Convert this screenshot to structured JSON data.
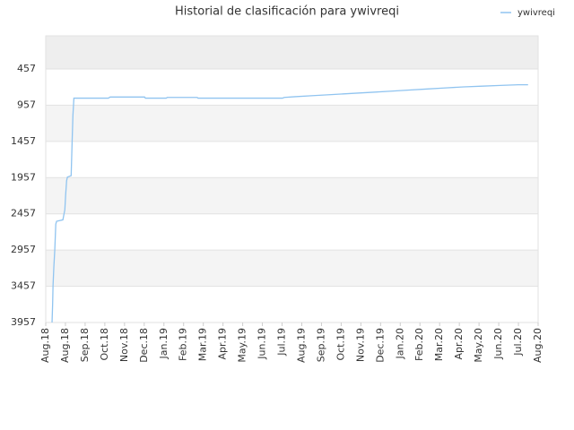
{
  "chart_data": {
    "type": "line",
    "title": "Historial de clasificación para ywivreqi",
    "legend": "top-right",
    "grid": true,
    "y_inverted": true,
    "xlim": [
      0,
      25
    ],
    "xticks": [
      {
        "value": 0,
        "label": "Aug.18"
      },
      {
        "value": 1,
        "label": "Aug.18"
      },
      {
        "value": 2,
        "label": "Sep.18"
      },
      {
        "value": 3,
        "label": "Oct.18"
      },
      {
        "value": 4,
        "label": "Nov.18"
      },
      {
        "value": 5,
        "label": "Dec.18"
      },
      {
        "value": 6,
        "label": "Jan.19"
      },
      {
        "value": 7,
        "label": "Feb.19"
      },
      {
        "value": 8,
        "label": "Mar.19"
      },
      {
        "value": 9,
        "label": "Apr.19"
      },
      {
        "value": 10,
        "label": "May.19"
      },
      {
        "value": 11,
        "label": "Jun.19"
      },
      {
        "value": 12,
        "label": "Jul.19"
      },
      {
        "value": 13,
        "label": "Aug.19"
      },
      {
        "value": 14,
        "label": "Sep.19"
      },
      {
        "value": 15,
        "label": "Oct.19"
      },
      {
        "value": 16,
        "label": "Nov.19"
      },
      {
        "value": 17,
        "label": "Dec.19"
      },
      {
        "value": 18,
        "label": "Jan.20"
      },
      {
        "value": 19,
        "label": "Feb.20"
      },
      {
        "value": 20,
        "label": "Mar.20"
      },
      {
        "value": 21,
        "label": "Apr.20"
      },
      {
        "value": 22,
        "label": "May.20"
      },
      {
        "value": 23,
        "label": "Jun.20"
      },
      {
        "value": 24,
        "label": "Jul.20"
      },
      {
        "value": 25,
        "label": "Aug.20"
      }
    ],
    "ylim": [
      3957,
      0
    ],
    "yticks": [
      457,
      957,
      1457,
      1957,
      2457,
      2957,
      3457,
      3957
    ],
    "x": [
      0.32,
      0.35,
      0.37,
      0.41,
      0.46,
      0.51,
      0.55,
      0.87,
      0.97,
      1.01,
      1.06,
      1.1,
      1.29,
      1.34,
      1.38,
      1.43,
      3.18,
      3.27,
      5.02,
      5.06,
      6.12,
      6.17,
      7.69,
      7.73,
      12.02,
      12.11,
      12.66,
      13.58,
      14.59,
      15.52,
      16.53,
      17.45,
      18.37,
      19.29,
      20.21,
      21.22,
      22.15,
      23.07,
      23.99,
      24.49
    ],
    "series": [
      {
        "name": "ywivreqi",
        "color": "#90c4f0",
        "values": [
          3957,
          3700,
          3450,
          3200,
          2950,
          2600,
          2560,
          2540,
          2400,
          2200,
          2000,
          1950,
          1930,
          1457,
          1100,
          860,
          860,
          845,
          845,
          860,
          860,
          850,
          850,
          860,
          860,
          850,
          840,
          825,
          810,
          795,
          780,
          765,
          750,
          735,
          720,
          705,
          695,
          685,
          675,
          675
        ]
      }
    ]
  }
}
